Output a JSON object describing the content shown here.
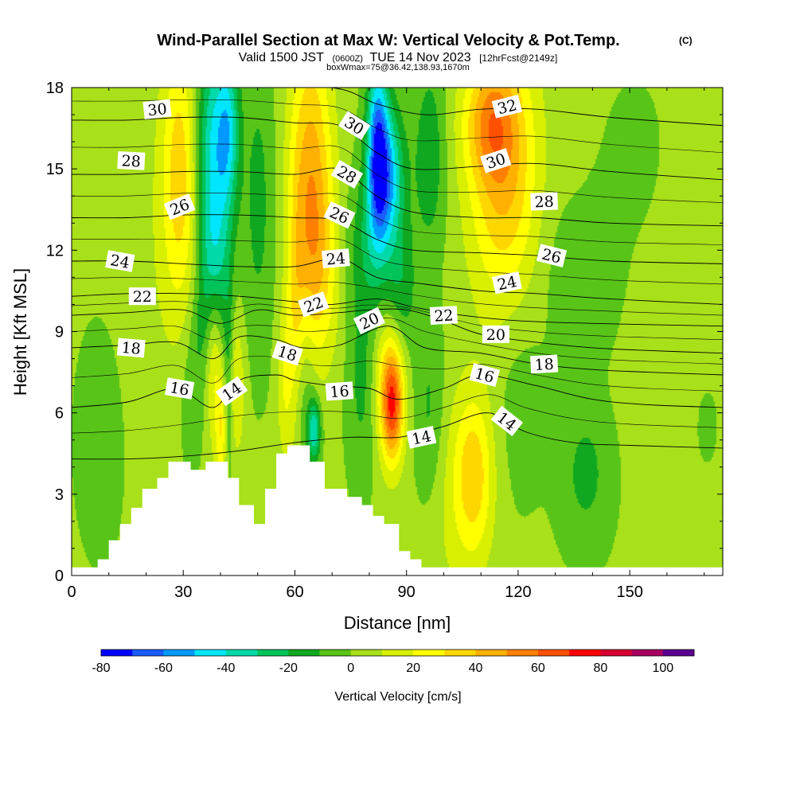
{
  "header": {
    "title_main": "Wind-Parallel Section at Max W: Vertical Velocity & Pot.Temp.",
    "title_mark": "(C)",
    "valid_prefix": "Valid 1500 JST",
    "valid_zulu": "(0600Z)",
    "valid_date": "TUE 14 Nov 2023",
    "forecast_tag": "[12hrFcst@2149z]",
    "box_info": "boxWmax=75@36.42,138.93,1670m"
  },
  "chart_data": {
    "type": "heatmap",
    "xlabel": "Distance [nm]",
    "ylabel": "Height [Kft MSL]",
    "xlim": [
      0,
      175
    ],
    "ylim": [
      0,
      18
    ],
    "x_ticks": [
      "0",
      "30",
      "60",
      "90",
      "120",
      "150"
    ],
    "y_ticks": [
      "0",
      "3",
      "6",
      "9",
      "12",
      "15",
      "18"
    ],
    "colorbar": {
      "label": "Vertical Velocity [cm/s]",
      "ticks": [
        "-80",
        "-60",
        "-40",
        "-20",
        "0",
        "20",
        "40",
        "60",
        "80",
        "100"
      ],
      "range": [
        -80,
        110
      ],
      "step": 10,
      "colors": [
        "#0000ff",
        "#1a5cff",
        "#0099ff",
        "#00e6ff",
        "#00d9a8",
        "#00c45a",
        "#10a820",
        "#58c418",
        "#a8e01a",
        "#d8f000",
        "#ffff00",
        "#ffd700",
        "#ffb000",
        "#ff8000",
        "#ff5000",
        "#ff0000",
        "#d80030",
        "#a80060",
        "#5a0090"
      ]
    },
    "terrain_profile": [
      [
        0,
        0.3
      ],
      [
        7,
        0.3
      ],
      [
        7,
        0.6
      ],
      [
        10,
        0.6
      ],
      [
        10,
        1.3
      ],
      [
        13,
        1.3
      ],
      [
        13,
        1.9
      ],
      [
        16,
        1.9
      ],
      [
        16,
        2.5
      ],
      [
        19,
        2.5
      ],
      [
        19,
        3.2
      ],
      [
        23,
        3.2
      ],
      [
        23,
        3.6
      ],
      [
        26,
        3.6
      ],
      [
        26,
        4.2
      ],
      [
        29,
        4.2
      ],
      [
        29,
        4.2
      ],
      [
        32,
        4.2
      ],
      [
        32,
        3.9
      ],
      [
        36,
        3.9
      ],
      [
        36,
        4.2
      ],
      [
        42,
        4.2
      ],
      [
        42,
        3.6
      ],
      [
        45,
        3.6
      ],
      [
        45,
        2.6
      ],
      [
        49,
        2.6
      ],
      [
        49,
        1.9
      ],
      [
        52,
        1.9
      ],
      [
        52,
        3.2
      ],
      [
        55,
        3.2
      ],
      [
        55,
        4.5
      ],
      [
        58,
        4.5
      ],
      [
        58,
        4.8
      ],
      [
        64,
        4.8
      ],
      [
        64,
        4.2
      ],
      [
        68,
        4.2
      ],
      [
        68,
        3.2
      ],
      [
        74,
        3.2
      ],
      [
        74,
        2.9
      ],
      [
        78,
        2.9
      ],
      [
        78,
        2.6
      ],
      [
        81,
        2.6
      ],
      [
        81,
        2.2
      ],
      [
        84,
        2.2
      ],
      [
        84,
        1.9
      ],
      [
        88,
        1.9
      ],
      [
        88,
        0.9
      ],
      [
        91,
        0.9
      ],
      [
        91,
        0.6
      ],
      [
        94,
        0.6
      ],
      [
        94,
        0.3
      ],
      [
        175,
        0.3
      ]
    ],
    "vertical_velocity_features": [
      {
        "x": 38,
        "y": 15.5,
        "w": -45,
        "sx": 3.5,
        "sy": 3.2
      },
      {
        "x": 38,
        "y": 11.2,
        "w": -25,
        "sx": 2.5,
        "sy": 1.8
      },
      {
        "x": 42,
        "y": 16.5,
        "w": -30,
        "sx": 2.0,
        "sy": 2.0
      },
      {
        "x": 29,
        "y": 14.8,
        "w": 35,
        "sx": 3.5,
        "sy": 3.5
      },
      {
        "x": 50,
        "y": 13.8,
        "w": -15,
        "sx": 3.0,
        "sy": 4.0
      },
      {
        "x": 64,
        "y": 15.2,
        "w": 40,
        "sx": 4.0,
        "sy": 3.5
      },
      {
        "x": 66,
        "y": 11.2,
        "w": 25,
        "sx": 4.0,
        "sy": 2.5
      },
      {
        "x": 82,
        "y": 15.8,
        "w": -60,
        "sx": 2.0,
        "sy": 2.3
      },
      {
        "x": 85,
        "y": 14.8,
        "w": -45,
        "sx": 3.0,
        "sy": 1.8
      },
      {
        "x": 80,
        "y": 12.2,
        "w": -20,
        "sx": 4.5,
        "sy": 2.0
      },
      {
        "x": 88,
        "y": 10.5,
        "w": -20,
        "sx": 3.0,
        "sy": 1.8
      },
      {
        "x": 96,
        "y": 15.5,
        "w": -20,
        "sx": 3.0,
        "sy": 2.5
      },
      {
        "x": 116,
        "y": 14.8,
        "w": 40,
        "sx": 6.5,
        "sy": 3.5
      },
      {
        "x": 112,
        "y": 16.8,
        "w": 30,
        "sx": 5.0,
        "sy": 1.6
      },
      {
        "x": 38,
        "y": 8.2,
        "w": 22,
        "sx": 1.5,
        "sy": 2.4
      },
      {
        "x": 40,
        "y": 5.4,
        "w": 25,
        "sx": 1.0,
        "sy": 1.5
      },
      {
        "x": 44,
        "y": 7.0,
        "w": 20,
        "sx": 1.6,
        "sy": 1.8
      },
      {
        "x": 32,
        "y": 6.2,
        "w": -10,
        "sx": 2.2,
        "sy": 1.6
      },
      {
        "x": 42,
        "y": 7.5,
        "w": -18,
        "sx": 1.0,
        "sy": 2.5
      },
      {
        "x": 34,
        "y": 9.0,
        "w": -10,
        "sx": 2.2,
        "sy": 1.5
      },
      {
        "x": 60,
        "y": 9.0,
        "w": 20,
        "sx": 1.8,
        "sy": 3.5
      },
      {
        "x": 57,
        "y": 7.0,
        "w": 15,
        "sx": 1.5,
        "sy": 2.0
      },
      {
        "x": 65,
        "y": 5.4,
        "w": -40,
        "sx": 1.2,
        "sy": 0.8
      },
      {
        "x": 62,
        "y": 6.5,
        "w": -15,
        "sx": 2.0,
        "sy": 2.0
      },
      {
        "x": 86,
        "y": 6.3,
        "w": 50,
        "sx": 2.0,
        "sy": 1.4
      },
      {
        "x": 85,
        "y": 7.2,
        "w": 28,
        "sx": 3.0,
        "sy": 2.0
      },
      {
        "x": 78,
        "y": 7.0,
        "w": -15,
        "sx": 3.0,
        "sy": 2.5
      },
      {
        "x": 96,
        "y": 6.0,
        "w": -15,
        "sx": 3.0,
        "sy": 2.5
      },
      {
        "x": 108,
        "y": 3.8,
        "w": 28,
        "sx": 3.5,
        "sy": 2.0
      },
      {
        "x": 104,
        "y": 3.0,
        "w": 12,
        "sx": 6.0,
        "sy": 3.0
      },
      {
        "x": 138,
        "y": 3.8,
        "w": -15,
        "sx": 5.0,
        "sy": 2.0
      },
      {
        "x": 140,
        "y": 10.8,
        "w": -10,
        "sx": 5.0,
        "sy": 1.8
      },
      {
        "x": 162,
        "y": 9.8,
        "w": 5,
        "sx": 10.0,
        "sy": 4.0
      },
      {
        "x": 170,
        "y": 6.0,
        "w": -5,
        "sx": 4.0,
        "sy": 2.0
      },
      {
        "x": 130,
        "y": 11.5,
        "w": -5,
        "sx": 4.0,
        "sy": 2.0
      },
      {
        "x": 20,
        "y": 10.5,
        "w": 5,
        "sx": 6.0,
        "sy": 6.0
      },
      {
        "x": 8,
        "y": 5.0,
        "w": -8,
        "sx": 5.0,
        "sy": 3.0
      },
      {
        "x": 152,
        "y": 14.5,
        "w": -5,
        "sx": 8.0,
        "sy": 3.0
      },
      {
        "x": 120,
        "y": 7.0,
        "w": -8,
        "sx": 5.0,
        "sy": 3.0
      }
    ],
    "theta_contours": [
      {
        "value": 14,
        "points": [
          [
            0,
            4.3
          ],
          [
            15,
            4.3
          ],
          [
            30,
            4.4
          ],
          [
            45,
            4.6
          ],
          [
            60,
            4.9
          ],
          [
            75,
            5.1
          ],
          [
            88,
            5.1
          ],
          [
            100,
            5.5
          ],
          [
            112,
            6.0
          ],
          [
            122,
            5.3
          ],
          [
            135,
            4.9
          ],
          [
            150,
            4.8
          ],
          [
            175,
            4.7
          ]
        ]
      },
      {
        "value": 16,
        "points": [
          [
            0,
            6.2
          ],
          [
            15,
            6.4
          ],
          [
            28,
            6.9
          ],
          [
            38,
            6.2
          ],
          [
            45,
            7.2
          ],
          [
            55,
            7.4
          ],
          [
            60,
            7.2
          ],
          [
            70,
            7.0
          ],
          [
            80,
            6.9
          ],
          [
            88,
            6.5
          ],
          [
            100,
            6.9
          ],
          [
            110,
            7.4
          ],
          [
            125,
            7.0
          ],
          [
            140,
            6.5
          ],
          [
            155,
            6.3
          ],
          [
            175,
            6.2
          ]
        ]
      },
      {
        "value": 18,
        "points": [
          [
            0,
            8.4
          ],
          [
            15,
            8.5
          ],
          [
            28,
            8.6
          ],
          [
            38,
            8.0
          ],
          [
            45,
            8.8
          ],
          [
            55,
            8.7
          ],
          [
            62,
            8.4
          ],
          [
            72,
            8.5
          ],
          [
            85,
            9.2
          ],
          [
            95,
            8.4
          ],
          [
            110,
            8.2
          ],
          [
            125,
            7.8
          ],
          [
            140,
            7.6
          ],
          [
            155,
            7.5
          ],
          [
            175,
            7.4
          ]
        ]
      },
      {
        "value": 20,
        "points": [
          [
            0,
            9.6
          ],
          [
            15,
            9.7
          ],
          [
            30,
            9.8
          ],
          [
            40,
            9.3
          ],
          [
            50,
            9.8
          ],
          [
            60,
            9.6
          ],
          [
            72,
            9.7
          ],
          [
            80,
            9.8
          ],
          [
            90,
            9.8
          ],
          [
            100,
            9.4
          ],
          [
            110,
            8.9
          ],
          [
            125,
            8.6
          ],
          [
            140,
            8.4
          ],
          [
            155,
            8.3
          ],
          [
            175,
            8.2
          ]
        ]
      },
      {
        "value": 22,
        "points": [
          [
            0,
            10.3
          ],
          [
            15,
            10.4
          ],
          [
            30,
            10.4
          ],
          [
            45,
            10.3
          ],
          [
            60,
            10.1
          ],
          [
            70,
            10.0
          ],
          [
            82,
            10.2
          ],
          [
            92,
            9.9
          ],
          [
            105,
            9.6
          ],
          [
            120,
            9.4
          ],
          [
            140,
            9.3
          ],
          [
            175,
            9.2
          ]
        ]
      },
      {
        "value": 24,
        "points": [
          [
            0,
            11.6
          ],
          [
            15,
            11.6
          ],
          [
            30,
            11.5
          ],
          [
            45,
            11.4
          ],
          [
            60,
            11.4
          ],
          [
            72,
            11.7
          ],
          [
            82,
            11.0
          ],
          [
            92,
            10.8
          ],
          [
            110,
            10.5
          ],
          [
            125,
            10.4
          ],
          [
            145,
            10.2
          ],
          [
            175,
            10.0
          ]
        ]
      },
      {
        "value": 26,
        "points": [
          [
            0,
            13.2
          ],
          [
            15,
            13.2
          ],
          [
            30,
            13.3
          ],
          [
            45,
            13.3
          ],
          [
            60,
            13.2
          ],
          [
            72,
            13.1
          ],
          [
            82,
            12.4
          ],
          [
            92,
            12.0
          ],
          [
            110,
            11.9
          ],
          [
            125,
            11.8
          ],
          [
            145,
            11.6
          ],
          [
            175,
            11.5
          ]
        ]
      },
      {
        "value": 28,
        "points": [
          [
            0,
            14.8
          ],
          [
            15,
            14.8
          ],
          [
            30,
            14.9
          ],
          [
            45,
            14.9
          ],
          [
            60,
            14.8
          ],
          [
            72,
            15.0
          ],
          [
            82,
            14.0
          ],
          [
            92,
            13.4
          ],
          [
            110,
            13.2
          ],
          [
            125,
            13.2
          ],
          [
            145,
            13.0
          ],
          [
            175,
            12.9
          ]
        ]
      },
      {
        "value": 30,
        "points": [
          [
            0,
            16.8
          ],
          [
            15,
            16.8
          ],
          [
            30,
            16.9
          ],
          [
            45,
            16.9
          ],
          [
            60,
            16.7
          ],
          [
            72,
            16.6
          ],
          [
            82,
            15.6
          ],
          [
            92,
            15.0
          ],
          [
            110,
            15.1
          ],
          [
            125,
            15.2
          ],
          [
            145,
            14.9
          ],
          [
            175,
            14.6
          ]
        ]
      },
      {
        "value": 32,
        "points": [
          [
            0,
            18.2
          ],
          [
            40,
            18.2
          ],
          [
            70,
            18.0
          ],
          [
            82,
            17.4
          ],
          [
            95,
            17.0
          ],
          [
            110,
            17.2
          ],
          [
            125,
            17.2
          ],
          [
            145,
            16.9
          ],
          [
            175,
            16.6
          ]
        ]
      }
    ],
    "contour_labels": [
      {
        "text": "30",
        "x": 23,
        "y": 17.2,
        "rot": -6
      },
      {
        "text": "30",
        "x": 76,
        "y": 16.6,
        "rot": 32
      },
      {
        "text": "32",
        "x": 117,
        "y": 17.3,
        "rot": -14
      },
      {
        "text": "28",
        "x": 16,
        "y": 15.3,
        "rot": 3
      },
      {
        "text": "28",
        "x": 74,
        "y": 14.8,
        "rot": 30
      },
      {
        "text": "30",
        "x": 114,
        "y": 15.3,
        "rot": -18
      },
      {
        "text": "26",
        "x": 29,
        "y": 13.6,
        "rot": -22
      },
      {
        "text": "26",
        "x": 72,
        "y": 13.3,
        "rot": 25
      },
      {
        "text": "28",
        "x": 127,
        "y": 13.8,
        "rot": -2
      },
      {
        "text": "24",
        "x": 13,
        "y": 11.6,
        "rot": 10
      },
      {
        "text": "24",
        "x": 71,
        "y": 11.7,
        "rot": -5
      },
      {
        "text": "26",
        "x": 129,
        "y": 11.8,
        "rot": 14
      },
      {
        "text": "22",
        "x": 19,
        "y": 10.3,
        "rot": 0
      },
      {
        "text": "22",
        "x": 65,
        "y": 10.0,
        "rot": -20
      },
      {
        "text": "24",
        "x": 117,
        "y": 10.8,
        "rot": -12
      },
      {
        "text": "20",
        "x": 80,
        "y": 9.4,
        "rot": -25
      },
      {
        "text": "22",
        "x": 100,
        "y": 9.6,
        "rot": -3
      },
      {
        "text": "20",
        "x": 114,
        "y": 8.9,
        "rot": 0
      },
      {
        "text": "18",
        "x": 16,
        "y": 8.4,
        "rot": 5
      },
      {
        "text": "18",
        "x": 58,
        "y": 8.2,
        "rot": 18
      },
      {
        "text": "18",
        "x": 127,
        "y": 7.8,
        "rot": -3
      },
      {
        "text": "16",
        "x": 29,
        "y": 6.9,
        "rot": 10
      },
      {
        "text": "14",
        "x": 43,
        "y": 6.8,
        "rot": -35
      },
      {
        "text": "16",
        "x": 72,
        "y": 6.8,
        "rot": -4
      },
      {
        "text": "16",
        "x": 111,
        "y": 7.4,
        "rot": 15
      },
      {
        "text": "14",
        "x": 94,
        "y": 5.1,
        "rot": -12
      },
      {
        "text": "14",
        "x": 117,
        "y": 5.7,
        "rot": 38
      }
    ]
  }
}
